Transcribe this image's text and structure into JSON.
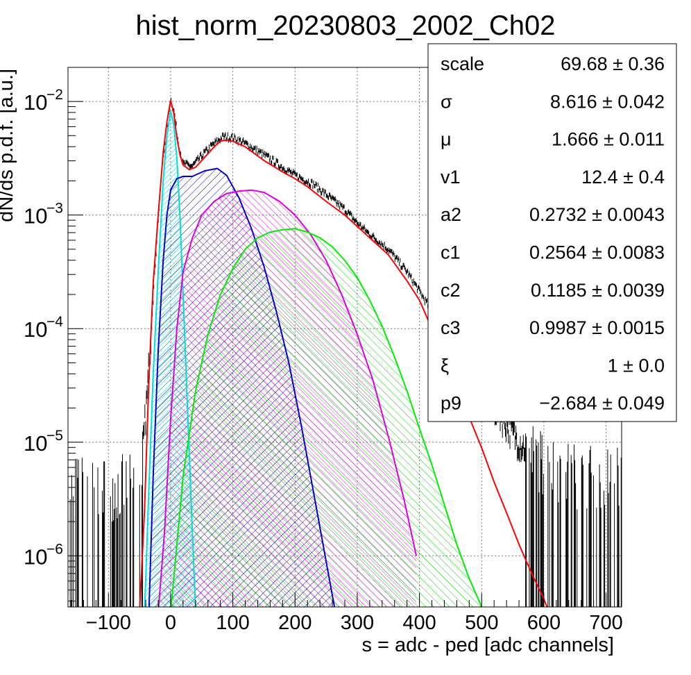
{
  "chart_data": {
    "type": "line",
    "title": "hist_norm_20230803_2002_Ch02",
    "xlabel": "s = adc - ped [adc channels]",
    "ylabel": "dN/ds p.d.f. [a.u.]",
    "xlim": [
      -165,
      725
    ],
    "ylim_log10": [
      -6.45,
      -1.7
    ],
    "log_y": true,
    "grid": true,
    "x_ticks": [
      -100,
      0,
      100,
      200,
      300,
      400,
      500,
      600,
      700
    ],
    "x_tick_labels": [
      "−100",
      "0",
      "100",
      "200",
      "300",
      "400",
      "500",
      "600",
      "700"
    ],
    "y_ticks_log10": [
      -6,
      -5,
      -4,
      -3,
      -2
    ],
    "y_tick_labels": [
      {
        "base": "10",
        "exp": "−6"
      },
      {
        "base": "10",
        "exp": "−5"
      },
      {
        "base": "10",
        "exp": "−4"
      },
      {
        "base": "10",
        "exp": "−3"
      },
      {
        "base": "10",
        "exp": "−2"
      }
    ],
    "series": [
      {
        "color": "#ff0000",
        "fill": "none",
        "points": [
          [
            -50,
            -6.5
          ],
          [
            -42,
            -5.6
          ],
          [
            -35,
            -4.45
          ],
          [
            -28,
            -3.6
          ],
          [
            -20,
            -3.0
          ],
          [
            -12,
            -2.45
          ],
          [
            -6,
            -2.18
          ],
          [
            0,
            -1.99
          ],
          [
            5,
            -2.1
          ],
          [
            10,
            -2.32
          ],
          [
            15,
            -2.47
          ],
          [
            20,
            -2.56
          ],
          [
            30,
            -2.6
          ],
          [
            40,
            -2.58
          ],
          [
            55,
            -2.49
          ],
          [
            70,
            -2.4
          ],
          [
            80,
            -2.35
          ],
          [
            90,
            -2.34
          ],
          [
            100,
            -2.35
          ],
          [
            120,
            -2.4
          ],
          [
            150,
            -2.52
          ],
          [
            180,
            -2.62
          ],
          [
            200,
            -2.68
          ],
          [
            220,
            -2.75
          ],
          [
            250,
            -2.88
          ],
          [
            280,
            -3.0
          ],
          [
            300,
            -3.1
          ],
          [
            320,
            -3.2
          ],
          [
            350,
            -3.35
          ],
          [
            380,
            -3.58
          ],
          [
            400,
            -3.75
          ],
          [
            420,
            -4.0
          ],
          [
            450,
            -4.35
          ],
          [
            480,
            -4.78
          ],
          [
            500,
            -5.05
          ],
          [
            520,
            -5.35
          ],
          [
            540,
            -5.62
          ],
          [
            560,
            -5.9
          ],
          [
            580,
            -6.15
          ],
          [
            600,
            -6.38
          ],
          [
            605,
            -6.45
          ]
        ]
      },
      {
        "color": "#00dddd",
        "fill": "#00dddd",
        "points": [
          [
            -42,
            -6.5
          ],
          [
            -35,
            -5.4
          ],
          [
            -28,
            -4.4
          ],
          [
            -20,
            -3.5
          ],
          [
            -12,
            -2.7
          ],
          [
            -6,
            -2.3
          ],
          [
            0,
            -2.08
          ],
          [
            5,
            -2.2
          ],
          [
            10,
            -2.5
          ],
          [
            15,
            -3.0
          ],
          [
            20,
            -3.7
          ],
          [
            25,
            -4.4
          ],
          [
            30,
            -5.1
          ],
          [
            35,
            -5.8
          ],
          [
            40,
            -6.45
          ]
        ]
      },
      {
        "color": "#0000cc",
        "fill": "#000080",
        "points": [
          [
            -35,
            -6.5
          ],
          [
            -28,
            -5.3
          ],
          [
            -20,
            -4.2
          ],
          [
            -12,
            -3.4
          ],
          [
            -6,
            -3.0
          ],
          [
            0,
            -2.78
          ],
          [
            10,
            -2.68
          ],
          [
            20,
            -2.66
          ],
          [
            35,
            -2.66
          ],
          [
            55,
            -2.61
          ],
          [
            75,
            -2.59
          ],
          [
            90,
            -2.65
          ],
          [
            110,
            -2.85
          ],
          [
            130,
            -3.12
          ],
          [
            150,
            -3.45
          ],
          [
            170,
            -3.85
          ],
          [
            190,
            -4.3
          ],
          [
            210,
            -4.85
          ],
          [
            230,
            -5.45
          ],
          [
            250,
            -6.05
          ],
          [
            265,
            -6.5
          ]
        ]
      },
      {
        "color": "#dd00dd",
        "fill": "#dd00dd",
        "points": [
          [
            -20,
            -6.5
          ],
          [
            -10,
            -5.8
          ],
          [
            0,
            -4.8
          ],
          [
            10,
            -4.0
          ],
          [
            20,
            -3.5
          ],
          [
            35,
            -3.2
          ],
          [
            50,
            -3.0
          ],
          [
            70,
            -2.88
          ],
          [
            90,
            -2.81
          ],
          [
            110,
            -2.79
          ],
          [
            130,
            -2.78
          ],
          [
            150,
            -2.8
          ],
          [
            175,
            -2.88
          ],
          [
            200,
            -3.0
          ],
          [
            225,
            -3.17
          ],
          [
            250,
            -3.4
          ],
          [
            275,
            -3.7
          ],
          [
            300,
            -4.05
          ],
          [
            325,
            -4.45
          ],
          [
            350,
            -4.95
          ],
          [
            375,
            -5.5
          ],
          [
            395,
            -6.0
          ]
        ]
      },
      {
        "color": "#00ee00",
        "fill": "#00cc00",
        "points": [
          [
            0,
            -6.5
          ],
          [
            20,
            -5.3
          ],
          [
            40,
            -4.55
          ],
          [
            60,
            -4.05
          ],
          [
            80,
            -3.7
          ],
          [
            100,
            -3.47
          ],
          [
            120,
            -3.3
          ],
          [
            140,
            -3.2
          ],
          [
            160,
            -3.15
          ],
          [
            180,
            -3.13
          ],
          [
            200,
            -3.12
          ],
          [
            220,
            -3.15
          ],
          [
            240,
            -3.2
          ],
          [
            260,
            -3.28
          ],
          [
            280,
            -3.4
          ],
          [
            300,
            -3.55
          ],
          [
            320,
            -3.75
          ],
          [
            340,
            -3.98
          ],
          [
            360,
            -4.25
          ],
          [
            380,
            -4.55
          ],
          [
            400,
            -4.88
          ],
          [
            420,
            -5.2
          ],
          [
            440,
            -5.55
          ],
          [
            460,
            -5.9
          ],
          [
            480,
            -6.2
          ],
          [
            500,
            -6.45
          ]
        ]
      }
    ],
    "data_hist": {
      "color": "#000000",
      "envelope": [
        [
          -165,
          -5.4
        ],
        [
          -100,
          -5.4
        ],
        [
          -60,
          -5.4
        ],
        [
          -45,
          -5.1
        ],
        [
          -38,
          -4.6
        ],
        [
          -30,
          -3.9
        ],
        [
          -22,
          -3.2
        ],
        [
          -14,
          -2.6
        ],
        [
          -7,
          -2.25
        ],
        [
          0,
          -1.98
        ],
        [
          6,
          -2.1
        ],
        [
          12,
          -2.35
        ],
        [
          20,
          -2.55
        ],
        [
          35,
          -2.57
        ],
        [
          55,
          -2.45
        ],
        [
          70,
          -2.37
        ],
        [
          85,
          -2.31
        ],
        [
          100,
          -2.32
        ],
        [
          120,
          -2.37
        ],
        [
          150,
          -2.47
        ],
        [
          180,
          -2.58
        ],
        [
          200,
          -2.65
        ],
        [
          230,
          -2.73
        ],
        [
          250,
          -2.82
        ],
        [
          280,
          -2.95
        ],
        [
          300,
          -3.07
        ],
        [
          320,
          -3.17
        ],
        [
          350,
          -3.3
        ],
        [
          380,
          -3.5
        ],
        [
          400,
          -3.67
        ],
        [
          420,
          -3.85
        ],
        [
          450,
          -4.1
        ],
        [
          480,
          -4.35
        ],
        [
          500,
          -4.55
        ],
        [
          530,
          -4.75
        ],
        [
          560,
          -5.0
        ],
        [
          600,
          -5.2
        ],
        [
          650,
          -5.3
        ],
        [
          725,
          -5.3
        ]
      ]
    },
    "stats": [
      {
        "name": "scale",
        "value": "69.68 ± 0.36"
      },
      {
        "name": "σ",
        "value": "8.616 ± 0.042"
      },
      {
        "name": "μ",
        "value": "1.666 ± 0.011"
      },
      {
        "name": "v1",
        "value": "12.4 ± 0.4"
      },
      {
        "name": "a2",
        "value": "0.2732 ± 0.0043"
      },
      {
        "name": "c1",
        "value": "0.2564 ± 0.0083"
      },
      {
        "name": "c2",
        "value": "0.1185 ± 0.0039"
      },
      {
        "name": "c3",
        "value": "0.9987 ± 0.0015"
      },
      {
        "name": "ξ",
        "value": "1 ± 0.0"
      },
      {
        "name": "p9",
        "value": "−2.684 ± 0.049"
      }
    ]
  }
}
